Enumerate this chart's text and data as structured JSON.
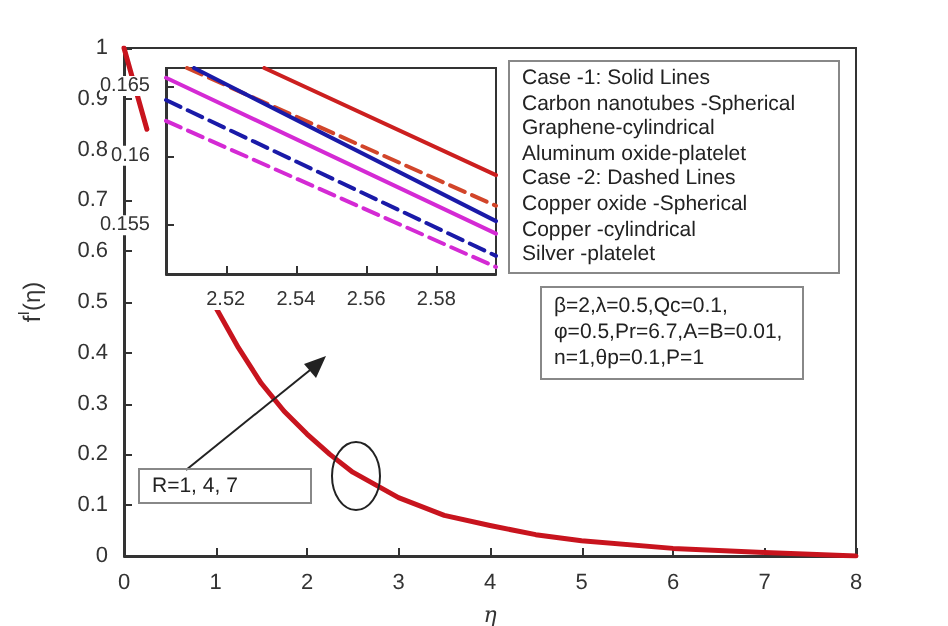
{
  "chart_data": [
    {
      "type": "line",
      "xlabel": "η",
      "ylabel": "f$^{I}$(η)",
      "marker": "none",
      "grid": false,
      "x": [
        0,
        0.25,
        0.5,
        0.75,
        1,
        1.25,
        1.5,
        1.75,
        2,
        2.25,
        2.5,
        2.75,
        3,
        3.5,
        4,
        4.5,
        5,
        6,
        7,
        8
      ],
      "series": [
        {
          "color": "#c8141e",
          "values": [
            1,
            0.84,
            null,
            null,
            0.49,
            0.41,
            0.34,
            0.285,
            0.24,
            0.2,
            0.165,
            0.14,
            0.115,
            0.08,
            0.06,
            0.042,
            0.03,
            0.015,
            0.007,
            0
          ]
        }
      ],
      "xlim": [
        0,
        8
      ],
      "xticks": [
        0,
        1,
        2,
        3,
        4,
        5,
        6,
        7,
        8
      ],
      "ylim": [
        0,
        1
      ],
      "yticks": [
        0,
        0.1,
        0.2,
        0.3,
        0.4,
        0.5,
        0.6,
        0.7,
        0.8,
        0.9,
        1
      ],
      "annotations": [
        "Case -1: Solid Lines\nCarbon nanotubes -Spherical\nGraphene-cylindrical\nAluminum oxide-platelet\nCase -2: Dashed Lines\nCopper oxide -Spherical\nCopper -cylindrical\nSilver -platelet",
        "β=2,λ=0.5,Qc=0.1,\nφ=0.5,Pr=6.7,A=B=0.01,\nn=1,θp=0.1,P=1",
        "R=1, 4, 7"
      ]
    },
    {
      "type": "line",
      "marker": "none",
      "grid": false,
      "series": [
        {
          "color": "#cc1f1f",
          "line_style": "solid",
          "x": [
            2.531,
            2.597
          ],
          "values": [
            0.1663,
            0.1586
          ]
        },
        {
          "color": "#d2452a",
          "line_style": "dashed",
          "x": [
            2.509,
            2.597
          ],
          "values": [
            0.1663,
            0.1564
          ]
        },
        {
          "color": "#1a1aa8",
          "line_style": "solid",
          "x": [
            2.511,
            2.597
          ],
          "values": [
            0.1663,
            0.1553
          ]
        },
        {
          "color": "#d42ad4",
          "line_style": "solid",
          "x": [
            2.503,
            2.597
          ],
          "values": [
            0.1656,
            0.1544
          ]
        },
        {
          "color": "#1a1aa8",
          "line_style": "dashed",
          "x": [
            2.503,
            2.597
          ],
          "values": [
            0.164,
            0.1528
          ]
        },
        {
          "color": "#d42ad4",
          "line_style": "dashed",
          "x": [
            2.503,
            2.597
          ],
          "values": [
            0.1625,
            0.152
          ]
        }
      ],
      "xlim": [
        2.503,
        2.597
      ],
      "xticks": [
        2.52,
        2.54,
        2.56,
        2.58
      ],
      "ylim": [
        0.1515,
        0.1663
      ],
      "yticks": [
        0.155,
        0.16,
        0.165
      ]
    }
  ]
}
